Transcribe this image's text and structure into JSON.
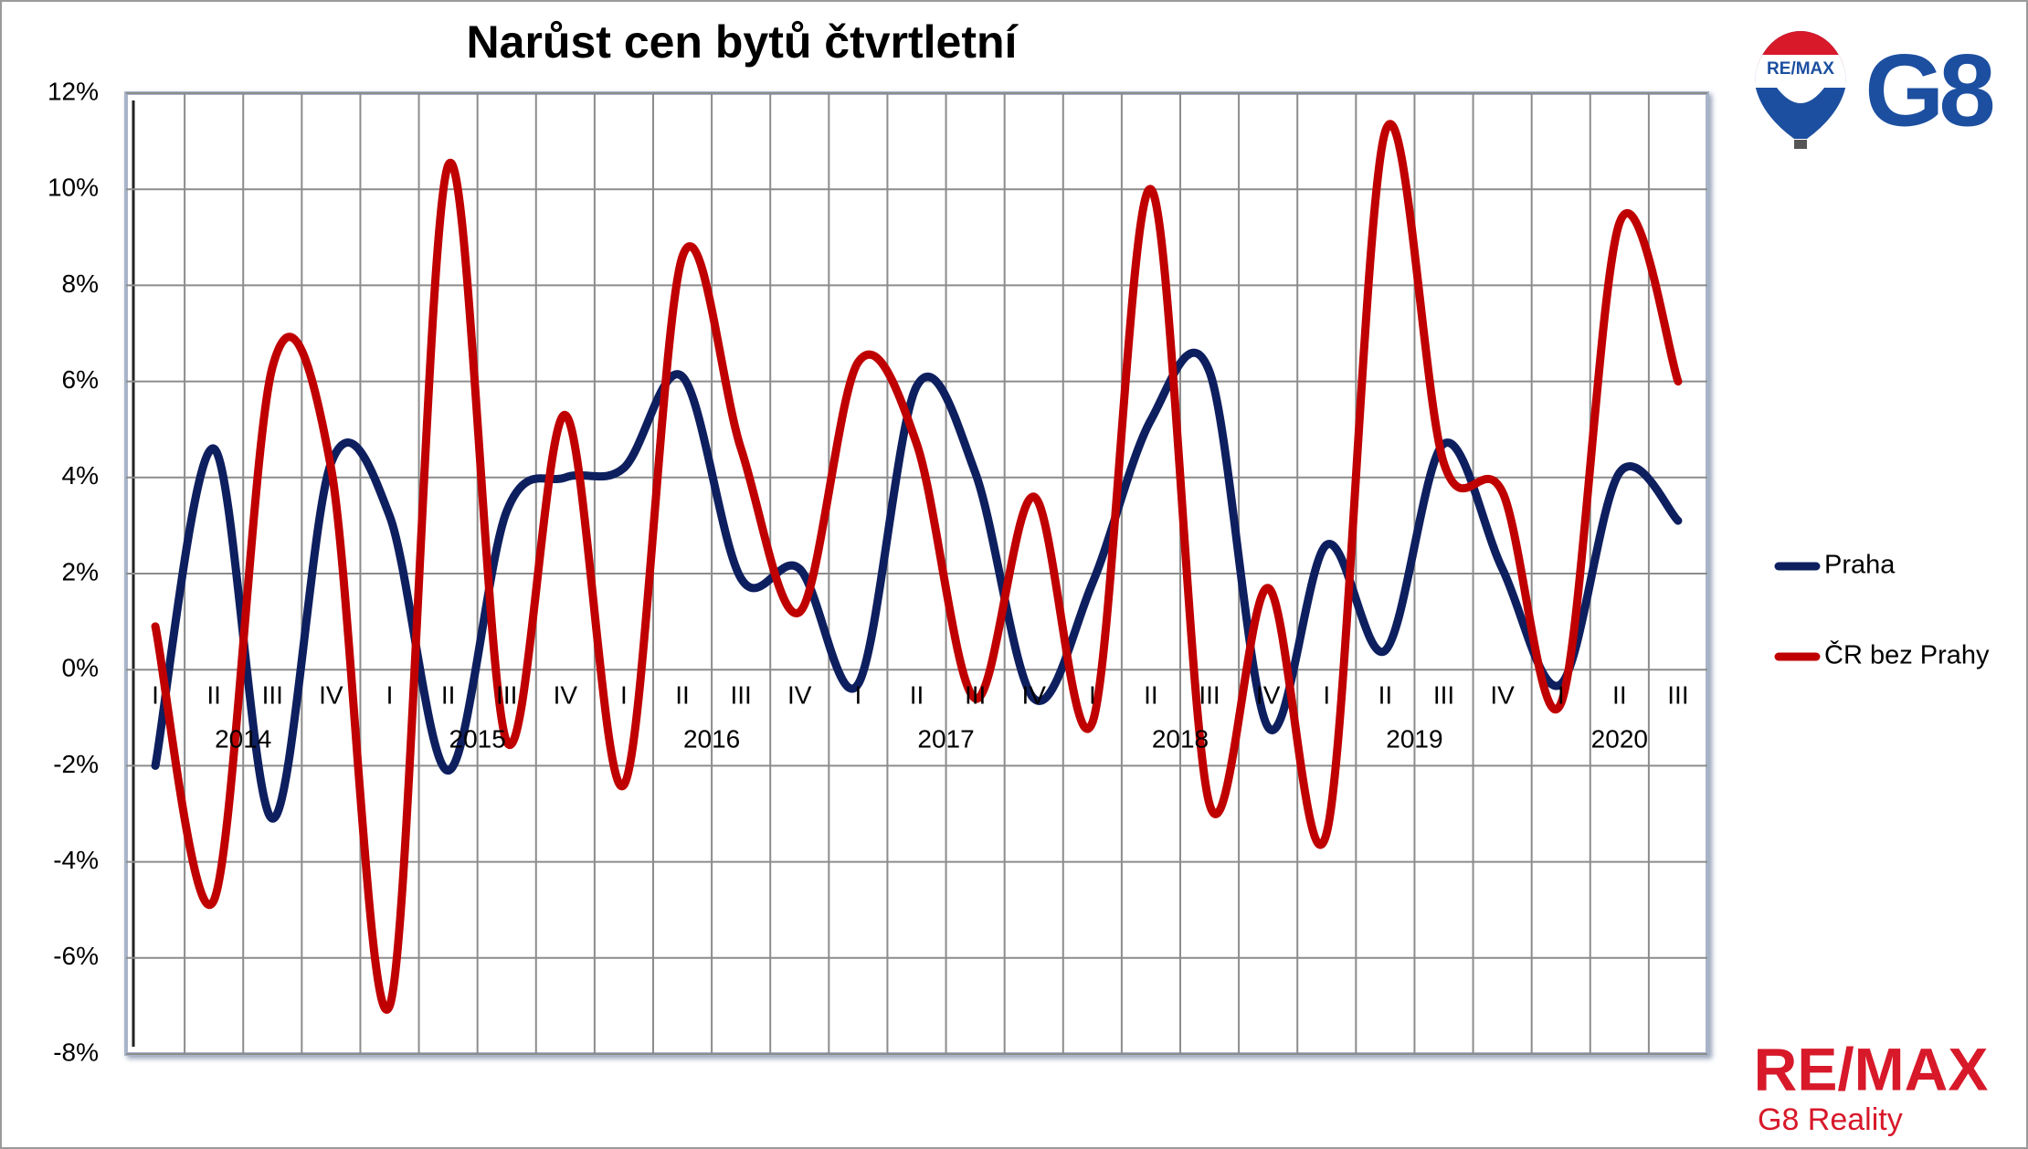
{
  "chart_data": {
    "type": "line",
    "title": "Narůst cen bytů čtvrtletní",
    "categories": [
      "I",
      "II",
      "III",
      "IV",
      "I",
      "II",
      "III",
      "IV",
      "I",
      "II",
      "III",
      "IV",
      "I",
      "II",
      "III",
      "IV",
      "I",
      "II",
      "III",
      "IV",
      "I",
      "II",
      "III",
      "IV",
      "I",
      "II",
      "III"
    ],
    "years": [
      "2014",
      "2015",
      "2016",
      "2017",
      "2018",
      "2019",
      "2020"
    ],
    "series": [
      {
        "name": "Praha",
        "color": "#0e1f5f",
        "values": [
          -2.0,
          4.6,
          -3.1,
          4.3,
          3.2,
          -2.1,
          3.3,
          4.0,
          4.2,
          6.1,
          1.9,
          2.1,
          -0.3,
          5.9,
          4.1,
          -0.6,
          1.8,
          5.2,
          6.2,
          -1.2,
          2.6,
          0.4,
          4.7,
          2.1,
          -0.3,
          4.1,
          3.1
        ]
      },
      {
        "name": "ČR bez Prahy",
        "color": "#c00000",
        "values": [
          0.9,
          -4.8,
          6.3,
          4.2,
          -7.0,
          10.5,
          -1.5,
          5.3,
          -2.4,
          8.6,
          4.6,
          1.2,
          6.4,
          4.7,
          -0.6,
          3.6,
          -1.1,
          10.0,
          -2.8,
          1.7,
          -3.4,
          11.2,
          4.3,
          3.7,
          -0.7,
          9.3,
          6.0
        ]
      }
    ],
    "ylim": [
      -8,
      12
    ],
    "yticks": [
      {
        "value": -8,
        "label": "-8%"
      },
      {
        "value": -6,
        "label": "-6%"
      },
      {
        "value": -4,
        "label": "-4%"
      },
      {
        "value": -2,
        "label": "-2%"
      },
      {
        "value": 0,
        "label": "0%"
      },
      {
        "value": 2,
        "label": "2%"
      },
      {
        "value": 4,
        "label": "4%"
      },
      {
        "value": 6,
        "label": "6%"
      },
      {
        "value": 8,
        "label": "8%"
      },
      {
        "value": 10,
        "label": "10%"
      },
      {
        "value": 12,
        "label": "12%"
      }
    ],
    "grid": true,
    "smooth": true,
    "legend": "right"
  },
  "logo": {
    "balloon": "RE/MAX",
    "mark": "G8",
    "brand": "RE/MAX",
    "subtitle": "G8 Reality"
  }
}
